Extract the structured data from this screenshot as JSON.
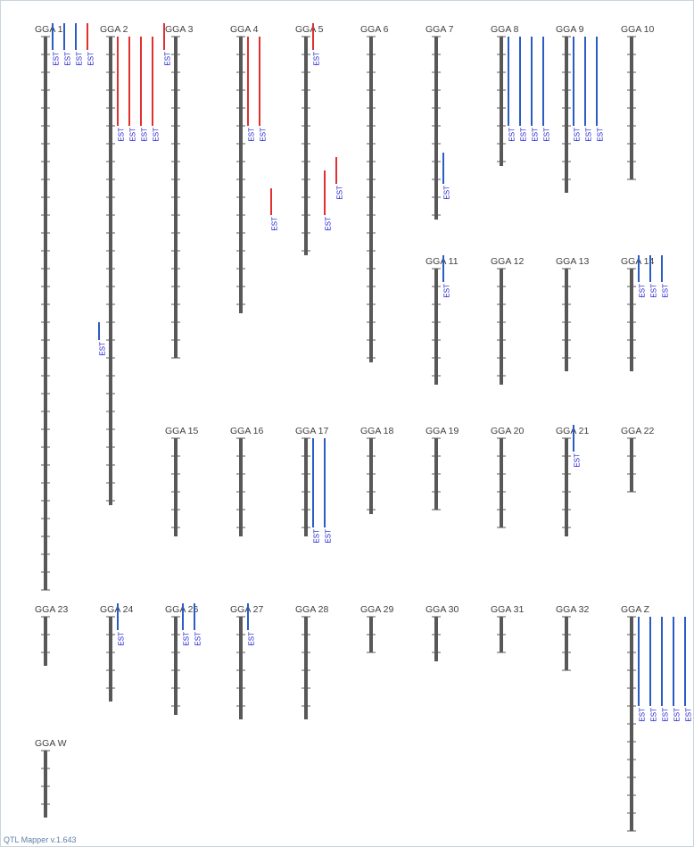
{
  "app": {
    "footer": "QTL Mapper v.1.643"
  },
  "legend": {
    "est_label": "EST"
  },
  "colors": {
    "chromosome": "#585858",
    "tick": "#585858",
    "label": "#404040",
    "qtl_red": "#e03030",
    "qtl_blue": "#2a5cc4",
    "est_text": "#1a1acc"
  },
  "chromosomes": [
    {
      "name": "GGA 1",
      "length": 62,
      "qtls": [
        {
          "start": -1.5,
          "end": 1.5,
          "color": "blue"
        },
        {
          "start": -1.5,
          "end": 1.5,
          "color": "blue"
        },
        {
          "start": -1.5,
          "end": 1.5,
          "color": "blue"
        },
        {
          "start": -1.5,
          "end": 1.5,
          "color": "red"
        },
        {
          "start": 32,
          "end": 34,
          "color": "blue"
        }
      ]
    },
    {
      "name": "GGA 2",
      "length": 52.5,
      "qtls": [
        {
          "start": 0,
          "end": 10,
          "color": "red"
        },
        {
          "start": 0,
          "end": 10,
          "color": "red"
        },
        {
          "start": 0,
          "end": 10,
          "color": "red"
        },
        {
          "start": 0,
          "end": 10,
          "color": "red"
        },
        {
          "start": -1.5,
          "end": 1.5,
          "color": "red"
        }
      ]
    },
    {
      "name": "GGA 3",
      "length": 36,
      "qtls": []
    },
    {
      "name": "GGA 4",
      "length": 31,
      "qtls": [
        {
          "start": 0,
          "end": 10,
          "color": "red"
        },
        {
          "start": 0,
          "end": 10,
          "color": "red"
        },
        {
          "start": 17,
          "end": 20,
          "color": "red"
        }
      ]
    },
    {
      "name": "GGA 5",
      "length": 24.5,
      "qtls": [
        {
          "start": -1.5,
          "end": 1.5,
          "color": "red"
        },
        {
          "start": 15,
          "end": 20,
          "color": "red"
        },
        {
          "start": 13.5,
          "end": 16.5,
          "color": "red"
        }
      ]
    },
    {
      "name": "GGA 6",
      "length": 36.5,
      "qtls": []
    },
    {
      "name": "GGA 7",
      "length": 20.5,
      "qtls": [
        {
          "start": 13,
          "end": 16.5,
          "color": "blue"
        }
      ]
    },
    {
      "name": "GGA 8",
      "length": 14.5,
      "qtls": [
        {
          "start": 0,
          "end": 10,
          "color": "blue"
        },
        {
          "start": 0,
          "end": 10,
          "color": "blue"
        },
        {
          "start": 0,
          "end": 10,
          "color": "blue"
        },
        {
          "start": 0,
          "end": 10,
          "color": "blue"
        }
      ]
    },
    {
      "name": "GGA 9",
      "length": 17.5,
      "qtls": [
        {
          "start": 0,
          "end": 10,
          "color": "blue"
        },
        {
          "start": 0,
          "end": 10,
          "color": "blue"
        },
        {
          "start": 0,
          "end": 10,
          "color": "blue"
        }
      ]
    },
    {
      "name": "GGA 10",
      "length": 16,
      "qtls": []
    },
    {
      "name": "GGA 11",
      "length": 13,
      "qtls": [
        {
          "start": -1.5,
          "end": 1.5,
          "color": "blue"
        }
      ]
    },
    {
      "name": "GGA 12",
      "length": 13,
      "qtls": []
    },
    {
      "name": "GGA 13",
      "length": 11.5,
      "qtls": []
    },
    {
      "name": "GGA 14",
      "length": 11.5,
      "qtls": [
        {
          "start": -1.5,
          "end": 1.5,
          "color": "blue"
        },
        {
          "start": -1.5,
          "end": 1.5,
          "color": "blue"
        },
        {
          "start": -1.5,
          "end": 1.5,
          "color": "blue"
        }
      ]
    },
    {
      "name": "GGA 15",
      "length": 11,
      "qtls": []
    },
    {
      "name": "GGA 16",
      "length": 11,
      "qtls": []
    },
    {
      "name": "GGA 17",
      "length": 11,
      "qtls": [
        {
          "start": 0,
          "end": 10,
          "color": "blue"
        },
        {
          "start": 0,
          "end": 10,
          "color": "blue"
        }
      ]
    },
    {
      "name": "GGA 18",
      "length": 8.5,
      "qtls": []
    },
    {
      "name": "GGA 19",
      "length": 8,
      "qtls": []
    },
    {
      "name": "GGA 20",
      "length": 10,
      "qtls": []
    },
    {
      "name": "GGA 21",
      "length": 11,
      "qtls": [
        {
          "start": -1.5,
          "end": 1.5,
          "color": "blue"
        }
      ]
    },
    {
      "name": "GGA 22",
      "length": 6,
      "qtls": []
    },
    {
      "name": "GGA 23",
      "length": 5.5,
      "qtls": []
    },
    {
      "name": "GGA 24",
      "length": 9.5,
      "qtls": [
        {
          "start": -1.5,
          "end": 1.5,
          "color": "blue"
        }
      ]
    },
    {
      "name": "GGA 26",
      "length": 11,
      "qtls": [
        {
          "start": -1.5,
          "end": 1.5,
          "color": "blue"
        },
        {
          "start": -1.5,
          "end": 1.5,
          "color": "blue"
        }
      ]
    },
    {
      "name": "GGA 27",
      "length": 11.5,
      "qtls": [
        {
          "start": -1.5,
          "end": 1.5,
          "color": "blue"
        }
      ]
    },
    {
      "name": "GGA 28",
      "length": 11.5,
      "qtls": []
    },
    {
      "name": "GGA 29",
      "length": 4,
      "qtls": []
    },
    {
      "name": "GGA 30",
      "length": 5,
      "qtls": []
    },
    {
      "name": "GGA 31",
      "length": 4,
      "qtls": []
    },
    {
      "name": "GGA 32",
      "length": 6,
      "qtls": []
    },
    {
      "name": "GGA Z",
      "length": 24,
      "qtls": [
        {
          "start": 0,
          "end": 10,
          "color": "blue"
        },
        {
          "start": 0,
          "end": 10,
          "color": "blue"
        },
        {
          "start": 0,
          "end": 10,
          "color": "blue"
        },
        {
          "start": 0,
          "end": 10,
          "color": "blue"
        },
        {
          "start": 0,
          "end": 10,
          "color": "blue"
        }
      ]
    },
    {
      "name": "GGA W",
      "length": 7.5,
      "qtls": []
    }
  ]
}
